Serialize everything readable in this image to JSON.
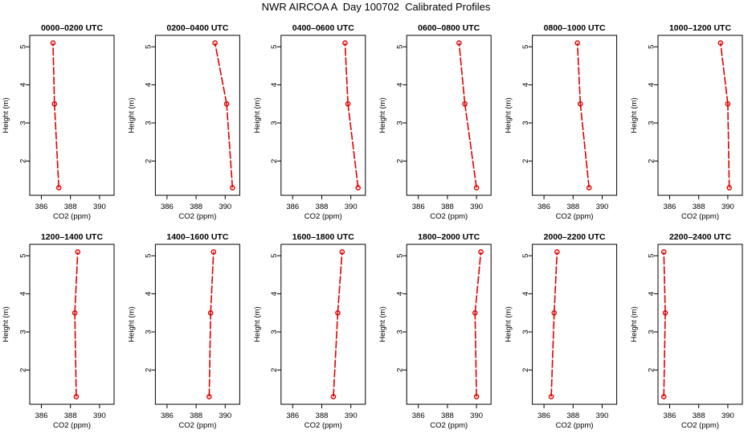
{
  "title": "NWR AIRCOA A  Day 100702  Calibrated Profiles",
  "colors": {
    "series": "#dd0000",
    "axis": "#000000",
    "background": "#ffffff"
  },
  "chart_data": [
    {
      "type": "line",
      "title": "0000–0200 UTC",
      "xlabel": "CO2 (ppm)",
      "ylabel": "Height (m)",
      "xlim": [
        385.2,
        391.0
      ],
      "ylim": [
        1.1,
        5.3
      ],
      "xticks": [
        386,
        388,
        390
      ],
      "yticks": [
        2,
        3,
        4,
        5
      ],
      "grid": false,
      "x": [
        387.2,
        386.9,
        386.8
      ],
      "y": [
        1.3,
        3.5,
        5.1
      ]
    },
    {
      "type": "line",
      "title": "0200–0400 UTC",
      "xlabel": "CO2 (ppm)",
      "ylabel": "Height (m)",
      "xlim": [
        385.2,
        391.0
      ],
      "ylim": [
        1.1,
        5.3
      ],
      "xticks": [
        386,
        388,
        390
      ],
      "yticks": [
        2,
        3,
        4,
        5
      ],
      "grid": false,
      "x": [
        390.5,
        390.1,
        389.3
      ],
      "y": [
        1.3,
        3.5,
        5.1
      ]
    },
    {
      "type": "line",
      "title": "0400–0600 UTC",
      "xlabel": "CO2 (ppm)",
      "ylabel": "Height (m)",
      "xlim": [
        385.2,
        391.0
      ],
      "ylim": [
        1.1,
        5.3
      ],
      "xticks": [
        386,
        388,
        390
      ],
      "yticks": [
        2,
        3,
        4,
        5
      ],
      "grid": false,
      "x": [
        390.5,
        389.8,
        389.6
      ],
      "y": [
        1.3,
        3.5,
        5.1
      ]
    },
    {
      "type": "line",
      "title": "0600–0800 UTC",
      "xlabel": "CO2 (ppm)",
      "ylabel": "Height (m)",
      "xlim": [
        385.2,
        391.0
      ],
      "ylim": [
        1.1,
        5.3
      ],
      "xticks": [
        386,
        388,
        390
      ],
      "yticks": [
        2,
        3,
        4,
        5
      ],
      "grid": false,
      "x": [
        390.0,
        389.2,
        388.8
      ],
      "y": [
        1.3,
        3.5,
        5.1
      ]
    },
    {
      "type": "line",
      "title": "0800–1000 UTC",
      "xlabel": "CO2 (ppm)",
      "ylabel": "Height (m)",
      "xlim": [
        385.2,
        391.0
      ],
      "ylim": [
        1.1,
        5.3
      ],
      "xticks": [
        386,
        388,
        390
      ],
      "yticks": [
        2,
        3,
        4,
        5
      ],
      "grid": false,
      "x": [
        389.1,
        388.5,
        388.3
      ],
      "y": [
        1.3,
        3.5,
        5.1
      ]
    },
    {
      "type": "line",
      "title": "1000–1200 UTC",
      "xlabel": "CO2 (ppm)",
      "ylabel": "Height (m)",
      "xlim": [
        385.2,
        391.0
      ],
      "ylim": [
        1.1,
        5.3
      ],
      "xticks": [
        386,
        388,
        390
      ],
      "yticks": [
        2,
        3,
        4,
        5
      ],
      "grid": false,
      "x": [
        390.1,
        390.0,
        389.5
      ],
      "y": [
        1.3,
        3.5,
        5.1
      ]
    },
    {
      "type": "line",
      "title": "1200–1400 UTC",
      "xlabel": "CO2 (ppm)",
      "ylabel": "Height (m)",
      "xlim": [
        385.2,
        391.0
      ],
      "ylim": [
        1.1,
        5.3
      ],
      "xticks": [
        386,
        388,
        390
      ],
      "yticks": [
        2,
        3,
        4,
        5
      ],
      "grid": false,
      "x": [
        388.4,
        388.3,
        388.5
      ],
      "y": [
        1.3,
        3.5,
        5.1
      ]
    },
    {
      "type": "line",
      "title": "1400–1600 UTC",
      "xlabel": "CO2 (ppm)",
      "ylabel": "Height (m)",
      "xlim": [
        385.2,
        391.0
      ],
      "ylim": [
        1.1,
        5.3
      ],
      "xticks": [
        386,
        388,
        390
      ],
      "yticks": [
        2,
        3,
        4,
        5
      ],
      "grid": false,
      "x": [
        388.9,
        389.0,
        389.2
      ],
      "y": [
        1.3,
        3.5,
        5.1
      ]
    },
    {
      "type": "line",
      "title": "1600–1800 UTC",
      "xlabel": "CO2 (ppm)",
      "ylabel": "Height (m)",
      "xlim": [
        385.2,
        391.0
      ],
      "ylim": [
        1.1,
        5.3
      ],
      "xticks": [
        386,
        388,
        390
      ],
      "yticks": [
        2,
        3,
        4,
        5
      ],
      "grid": false,
      "x": [
        388.8,
        389.1,
        389.4
      ],
      "y": [
        1.3,
        3.5,
        5.1
      ]
    },
    {
      "type": "line",
      "title": "1800–2000 UTC",
      "xlabel": "CO2 (ppm)",
      "ylabel": "Height (m)",
      "xlim": [
        385.2,
        391.0
      ],
      "ylim": [
        1.1,
        5.3
      ],
      "xticks": [
        386,
        388,
        390
      ],
      "yticks": [
        2,
        3,
        4,
        5
      ],
      "grid": false,
      "x": [
        390.0,
        389.9,
        390.3
      ],
      "y": [
        1.3,
        3.5,
        5.1
      ]
    },
    {
      "type": "line",
      "title": "2000–2200 UTC",
      "xlabel": "CO2 (ppm)",
      "ylabel": "Height (m)",
      "xlim": [
        385.2,
        391.0
      ],
      "ylim": [
        1.1,
        5.3
      ],
      "xticks": [
        386,
        388,
        390
      ],
      "yticks": [
        2,
        3,
        4,
        5
      ],
      "grid": false,
      "x": [
        386.5,
        386.7,
        386.9
      ],
      "y": [
        1.3,
        3.5,
        5.1
      ]
    },
    {
      "type": "line",
      "title": "2200–2400 UTC",
      "xlabel": "CO2 (ppm)",
      "ylabel": "Height (m)",
      "xlim": [
        385.2,
        391.0
      ],
      "ylim": [
        1.1,
        5.3
      ],
      "xticks": [
        386,
        388,
        390
      ],
      "yticks": [
        2,
        3,
        4,
        5
      ],
      "grid": false,
      "x": [
        385.6,
        385.7,
        385.6
      ],
      "y": [
        1.3,
        3.5,
        5.1
      ]
    }
  ]
}
